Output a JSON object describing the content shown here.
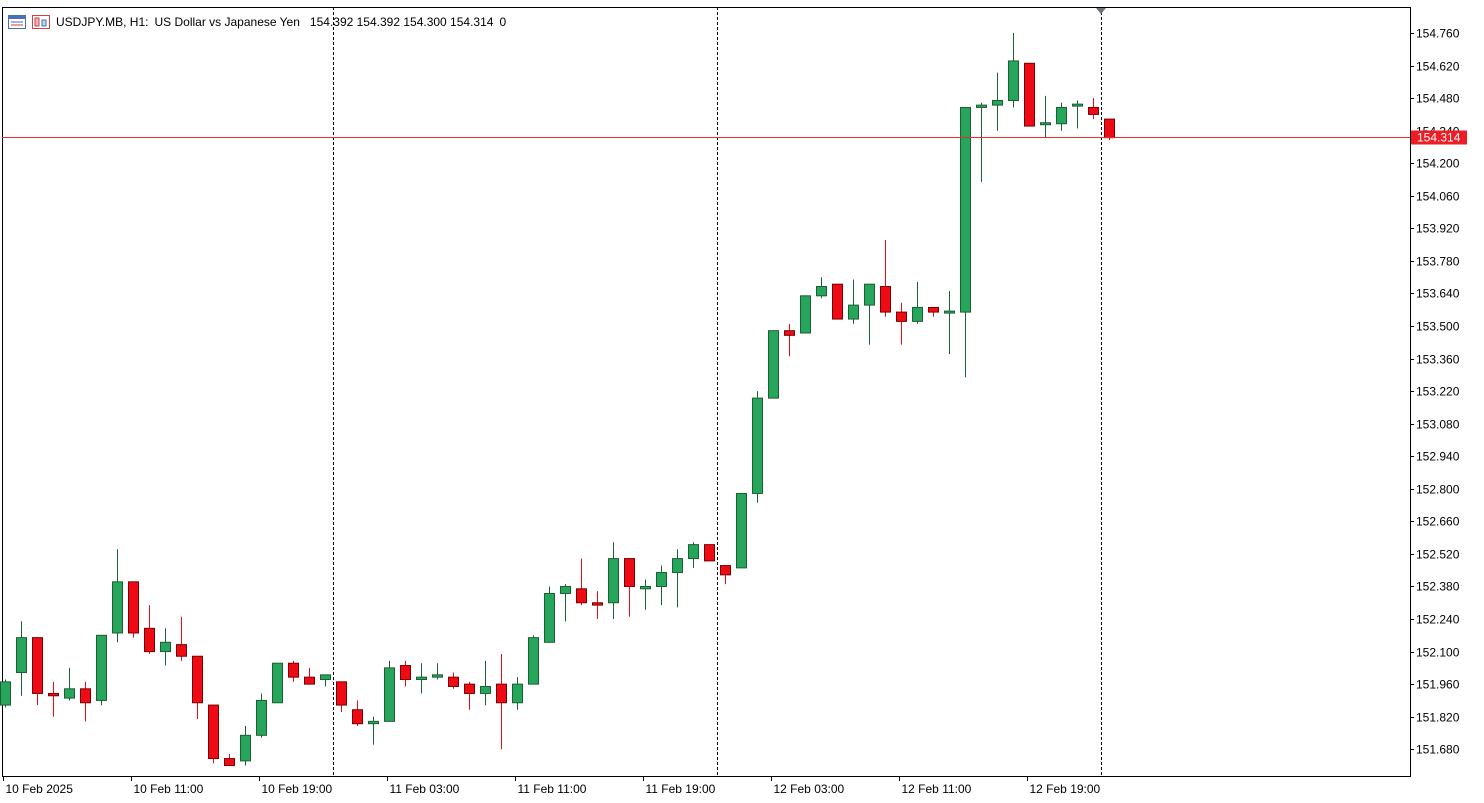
{
  "header": {
    "symbol": "USDJPY.MB, H1:",
    "description": "US Dollar vs Japanese Yen",
    "ohlc": "154.392 154.392 154.300 154.314",
    "volume": "0"
  },
  "colors": {
    "bull": "#26a65b",
    "bull_outline": "#1e5e34",
    "bear": "#ee0b16",
    "bear_outline": "#7a0000",
    "current_line": "#e0302a",
    "current_tag_bg": "#ee1c24",
    "current_tag_text": "#ffffff",
    "grid_separator": "#000000"
  },
  "chart_data": {
    "type": "candlestick",
    "timeframe": "H1",
    "current_price": 154.314,
    "current_price_label": "154.314",
    "ylim": [
      151.565,
      154.872
    ],
    "y_ticks": [
      "154.760",
      "154.620",
      "154.480",
      "154.340",
      "154.200",
      "154.060",
      "153.920",
      "153.780",
      "153.640",
      "153.500",
      "153.360",
      "153.220",
      "153.080",
      "152.940",
      "152.800",
      "152.660",
      "152.520",
      "152.380",
      "152.240",
      "152.100",
      "151.960",
      "151.820",
      "151.680"
    ],
    "x_labels": [
      {
        "index": 0,
        "text": "10 Feb 2025"
      },
      {
        "index": 8,
        "text": "10 Feb 11:00"
      },
      {
        "index": 16,
        "text": "10 Feb 19:00"
      },
      {
        "index": 24,
        "text": "11 Feb 03:00"
      },
      {
        "index": 32,
        "text": "11 Feb 11:00"
      },
      {
        "index": 40,
        "text": "11 Feb 19:00"
      },
      {
        "index": 48,
        "text": "12 Feb 03:00"
      },
      {
        "index": 56,
        "text": "12 Feb 11:00"
      },
      {
        "index": 64,
        "text": "12 Feb 19:00"
      }
    ],
    "separators_after_index": [
      20.5,
      44.5,
      68.5
    ],
    "candles": [
      {
        "o": 151.87,
        "h": 151.98,
        "l": 151.86,
        "c": 151.97
      },
      {
        "o": 152.01,
        "h": 152.23,
        "l": 151.91,
        "c": 152.16
      },
      {
        "o": 152.16,
        "h": 152.16,
        "l": 151.87,
        "c": 151.92
      },
      {
        "o": 151.92,
        "h": 151.97,
        "l": 151.82,
        "c": 151.91
      },
      {
        "o": 151.9,
        "h": 152.03,
        "l": 151.89,
        "c": 151.94
      },
      {
        "o": 151.94,
        "h": 151.97,
        "l": 151.8,
        "c": 151.88
      },
      {
        "o": 151.89,
        "h": 152.17,
        "l": 151.87,
        "c": 152.17
      },
      {
        "o": 152.18,
        "h": 152.54,
        "l": 152.14,
        "c": 152.4
      },
      {
        "o": 152.4,
        "h": 152.4,
        "l": 152.16,
        "c": 152.18
      },
      {
        "o": 152.2,
        "h": 152.3,
        "l": 152.09,
        "c": 152.1
      },
      {
        "o": 152.1,
        "h": 152.2,
        "l": 152.04,
        "c": 152.14
      },
      {
        "o": 152.13,
        "h": 152.25,
        "l": 152.06,
        "c": 152.08
      },
      {
        "o": 152.08,
        "h": 152.08,
        "l": 151.81,
        "c": 151.88
      },
      {
        "o": 151.87,
        "h": 151.87,
        "l": 151.62,
        "c": 151.64
      },
      {
        "o": 151.64,
        "h": 151.66,
        "l": 151.61,
        "c": 151.61
      },
      {
        "o": 151.63,
        "h": 151.78,
        "l": 151.61,
        "c": 151.74
      },
      {
        "o": 151.74,
        "h": 151.92,
        "l": 151.73,
        "c": 151.89
      },
      {
        "o": 151.88,
        "h": 152.05,
        "l": 151.88,
        "c": 152.05
      },
      {
        "o": 152.05,
        "h": 152.06,
        "l": 151.97,
        "c": 151.99
      },
      {
        "o": 151.99,
        "h": 152.03,
        "l": 151.96,
        "c": 151.96
      },
      {
        "o": 151.98,
        "h": 152.0,
        "l": 151.95,
        "c": 152.0
      },
      {
        "o": 151.97,
        "h": 151.97,
        "l": 151.84,
        "c": 151.87
      },
      {
        "o": 151.85,
        "h": 151.89,
        "l": 151.78,
        "c": 151.79
      },
      {
        "o": 151.79,
        "h": 151.82,
        "l": 151.7,
        "c": 151.8
      },
      {
        "o": 151.8,
        "h": 152.06,
        "l": 151.8,
        "c": 152.03
      },
      {
        "o": 152.04,
        "h": 152.06,
        "l": 151.95,
        "c": 151.98
      },
      {
        "o": 151.98,
        "h": 152.05,
        "l": 151.92,
        "c": 151.99
      },
      {
        "o": 151.99,
        "h": 152.05,
        "l": 151.98,
        "c": 152.0
      },
      {
        "o": 151.99,
        "h": 152.01,
        "l": 151.94,
        "c": 151.95
      },
      {
        "o": 151.96,
        "h": 151.97,
        "l": 151.85,
        "c": 151.92
      },
      {
        "o": 151.92,
        "h": 152.06,
        "l": 151.87,
        "c": 151.95
      },
      {
        "o": 151.96,
        "h": 152.09,
        "l": 151.68,
        "c": 151.88
      },
      {
        "o": 151.88,
        "h": 151.99,
        "l": 151.85,
        "c": 151.96
      },
      {
        "o": 151.96,
        "h": 152.17,
        "l": 151.96,
        "c": 152.16
      },
      {
        "o": 152.14,
        "h": 152.38,
        "l": 152.14,
        "c": 152.35
      },
      {
        "o": 152.35,
        "h": 152.39,
        "l": 152.23,
        "c": 152.38
      },
      {
        "o": 152.37,
        "h": 152.5,
        "l": 152.3,
        "c": 152.31
      },
      {
        "o": 152.31,
        "h": 152.36,
        "l": 152.24,
        "c": 152.3
      },
      {
        "o": 152.31,
        "h": 152.57,
        "l": 152.24,
        "c": 152.5
      },
      {
        "o": 152.5,
        "h": 152.5,
        "l": 152.25,
        "c": 152.38
      },
      {
        "o": 152.37,
        "h": 152.41,
        "l": 152.28,
        "c": 152.38
      },
      {
        "o": 152.38,
        "h": 152.47,
        "l": 152.3,
        "c": 152.44
      },
      {
        "o": 152.44,
        "h": 152.54,
        "l": 152.29,
        "c": 152.5
      },
      {
        "o": 152.5,
        "h": 152.57,
        "l": 152.46,
        "c": 152.56
      },
      {
        "o": 152.56,
        "h": 152.56,
        "l": 152.49,
        "c": 152.49
      },
      {
        "o": 152.47,
        "h": 152.47,
        "l": 152.39,
        "c": 152.43
      },
      {
        "o": 152.46,
        "h": 152.78,
        "l": 152.46,
        "c": 152.78
      },
      {
        "o": 152.78,
        "h": 153.22,
        "l": 152.74,
        "c": 153.19
      },
      {
        "o": 153.19,
        "h": 153.48,
        "l": 153.19,
        "c": 153.48
      },
      {
        "o": 153.48,
        "h": 153.51,
        "l": 153.37,
        "c": 153.46
      },
      {
        "o": 153.47,
        "h": 153.63,
        "l": 153.47,
        "c": 153.63
      },
      {
        "o": 153.63,
        "h": 153.71,
        "l": 153.62,
        "c": 153.67
      },
      {
        "o": 153.68,
        "h": 153.68,
        "l": 153.53,
        "c": 153.53
      },
      {
        "o": 153.53,
        "h": 153.7,
        "l": 153.51,
        "c": 153.59
      },
      {
        "o": 153.59,
        "h": 153.68,
        "l": 153.42,
        "c": 153.68
      },
      {
        "o": 153.67,
        "h": 153.87,
        "l": 153.54,
        "c": 153.56
      },
      {
        "o": 153.56,
        "h": 153.6,
        "l": 153.42,
        "c": 153.52
      },
      {
        "o": 153.52,
        "h": 153.69,
        "l": 153.51,
        "c": 153.58
      },
      {
        "o": 153.58,
        "h": 153.58,
        "l": 153.54,
        "c": 153.56
      },
      {
        "o": 153.56,
        "h": 153.65,
        "l": 153.38,
        "c": 153.56
      },
      {
        "o": 153.56,
        "h": 154.44,
        "l": 153.28,
        "c": 154.44
      },
      {
        "o": 154.44,
        "h": 154.46,
        "l": 154.12,
        "c": 154.45
      },
      {
        "o": 154.45,
        "h": 154.59,
        "l": 154.34,
        "c": 154.47
      },
      {
        "o": 154.47,
        "h": 154.76,
        "l": 154.44,
        "c": 154.64
      },
      {
        "o": 154.63,
        "h": 154.63,
        "l": 154.36,
        "c": 154.36
      },
      {
        "o": 154.37,
        "h": 154.49,
        "l": 154.31,
        "c": 154.37
      },
      {
        "o": 154.37,
        "h": 154.46,
        "l": 154.34,
        "c": 154.44
      },
      {
        "o": 154.45,
        "h": 154.47,
        "l": 154.35,
        "c": 154.45
      },
      {
        "o": 154.44,
        "h": 154.48,
        "l": 154.39,
        "c": 154.41
      },
      {
        "o": 154.39,
        "h": 154.39,
        "l": 154.3,
        "c": 154.31
      }
    ]
  }
}
